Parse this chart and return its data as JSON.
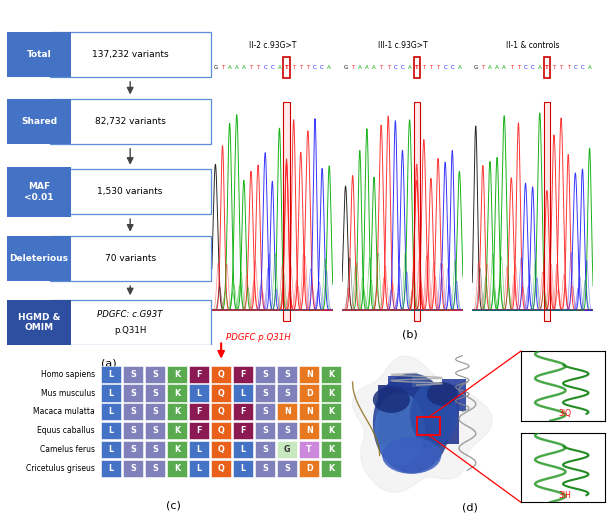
{
  "flowchart_labels": [
    "Total",
    "Shared",
    "MAF\n<0.01",
    "Deleterious",
    "HGMD &\nOMIM"
  ],
  "flowchart_values": [
    "137,232 variants",
    "82,732 variants",
    "1,530 variants",
    "70 variants",
    ""
  ],
  "flowchart_box_color": "#4472C4",
  "flowchart_last_color": "#2E4EA0",
  "flow_border_color": "#5B8DD9",
  "chrom_labels": [
    "II-2 c.93G>T",
    "III-1 c.93G>T",
    "II-1 & controls"
  ],
  "sequence": "GTAAATTCCATTTTCCA",
  "mut_idx": 10,
  "species": [
    "Homo sapiens",
    "Mus musculus",
    "Macaca mulatta",
    "Equus caballus",
    "Camelus ferus",
    "Cricetulus griseus"
  ],
  "residues": [
    [
      "L",
      "S",
      "S",
      "K",
      "F",
      "Q",
      "F",
      "S",
      "S",
      "N",
      "K"
    ],
    [
      "L",
      "S",
      "S",
      "K",
      "L",
      "Q",
      "L",
      "S",
      "S",
      "D",
      "K"
    ],
    [
      "L",
      "S",
      "S",
      "K",
      "F",
      "Q",
      "F",
      "S",
      "N",
      "N",
      "K"
    ],
    [
      "L",
      "S",
      "S",
      "K",
      "F",
      "Q",
      "F",
      "S",
      "S",
      "N",
      "K"
    ],
    [
      "L",
      "S",
      "S",
      "K",
      "L",
      "Q",
      "L",
      "S",
      "G",
      "T",
      "K"
    ],
    [
      "L",
      "S",
      "S",
      "K",
      "L",
      "Q",
      "L",
      "S",
      "S",
      "D",
      "K"
    ]
  ],
  "res_colors": {
    "L": "#4472C4",
    "S": "#8080BB",
    "K": "#5AAA50",
    "F": "#8B1A52",
    "Q": "#E8601A",
    "D": "#E87820",
    "N": "#E87820",
    "G": "#C8E8C0",
    "T": "#CC88DD",
    "I": "#4472C4"
  },
  "arrow_col_idx": 5,
  "label_a": "(a)",
  "label_b": "(b)",
  "label_c": "(c)",
  "label_d": "(d)"
}
